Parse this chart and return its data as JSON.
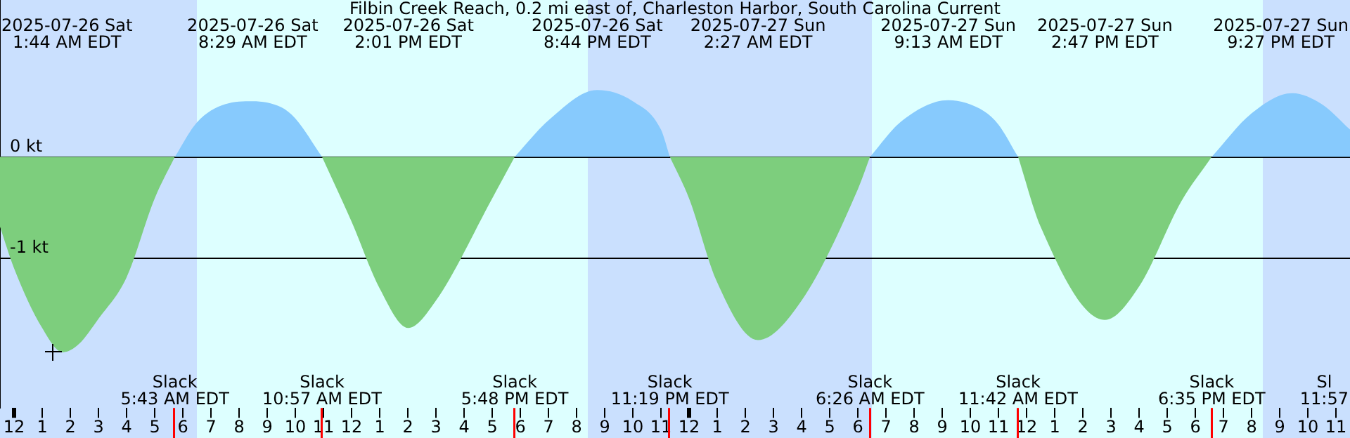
{
  "chart_data": {
    "type": "area",
    "title": "Filbin Creek Reach, 0.2 mi east of, Charleston Harbor, South Carolina Current",
    "x": [
      "2025-07-25T23:30",
      "2025-07-26T00:00",
      "2025-07-26T01:00",
      "2025-07-26T01:44",
      "2025-07-26T02:18",
      "2025-07-26T03:00",
      "2025-07-26T04:00",
      "2025-07-26T05:00",
      "2025-07-26T05:43",
      "2025-07-26T06:30",
      "2025-07-26T07:30",
      "2025-07-26T08:29",
      "2025-07-26T09:30",
      "2025-07-26T10:00",
      "2025-07-26T10:57",
      "2025-07-26T12:00",
      "2025-07-26T13:00",
      "2025-07-26T14:01",
      "2025-07-26T15:00",
      "2025-07-26T17:00",
      "2025-07-26T17:48",
      "2025-07-26T19:00",
      "2025-07-26T20:44",
      "2025-07-26T22:00",
      "2025-07-26T23:00",
      "2025-07-26T23:19",
      "2025-07-27T00:00",
      "2025-07-27T01:00",
      "2025-07-27T02:27",
      "2025-07-27T04:00",
      "2025-07-27T06:00",
      "2025-07-27T06:26",
      "2025-07-27T07:30",
      "2025-07-27T09:13",
      "2025-07-27T10:30",
      "2025-07-27T11:00",
      "2025-07-27T11:42",
      "2025-07-27T12:30",
      "2025-07-27T14:47",
      "2025-07-27T16:00",
      "2025-07-27T17:30",
      "2025-07-27T18:35",
      "2025-07-27T20:00",
      "2025-07-27T21:27",
      "2025-07-27T22:30",
      "2025-07-27T23:30"
    ],
    "series": [
      {
        "color": "#87cafd",
        "values": [
          null,
          null,
          null,
          null,
          null,
          null,
          null,
          null,
          0,
          0.34,
          0.52,
          0.55,
          0.49,
          0.38,
          0,
          null,
          null,
          null,
          null,
          null,
          0,
          0.36,
          0.66,
          0.55,
          0.27,
          0,
          null,
          null,
          null,
          null,
          null,
          0,
          0.34,
          0.56,
          0.45,
          0.32,
          0,
          null,
          null,
          null,
          null,
          0,
          0.43,
          0.63,
          0.52,
          0.27
        ]
      },
      {
        "color": "#7dce7d",
        "values": [
          -0.69,
          -1.1,
          -1.69,
          -1.93,
          -1.85,
          -1.6,
          -1.19,
          -0.41,
          0,
          null,
          null,
          null,
          null,
          null,
          0,
          -0.64,
          -1.3,
          -1.69,
          -1.42,
          -0.41,
          0,
          null,
          null,
          null,
          null,
          0,
          -0.41,
          -1.24,
          -1.81,
          -1.42,
          -0.32,
          0,
          null,
          null,
          null,
          null,
          0,
          -0.69,
          -1.61,
          -1.28,
          -0.44,
          0,
          null,
          null,
          null,
          null
        ]
      }
    ],
    "xlim": [
      "2025-07-25T23:30",
      "2025-07-27T23:30"
    ],
    "xticks": [
      {
        "value": "2025-07-26T00:00",
        "label": "12"
      },
      {
        "value": "2025-07-26T01:00",
        "label": "1"
      },
      {
        "value": "2025-07-26T02:00",
        "label": "2"
      },
      {
        "value": "2025-07-26T03:00",
        "label": "3"
      },
      {
        "value": "2025-07-26T04:00",
        "label": "4"
      },
      {
        "value": "2025-07-26T05:00",
        "label": "5"
      },
      {
        "value": "2025-07-26T06:00",
        "label": "6"
      },
      {
        "value": "2025-07-26T07:00",
        "label": "7"
      },
      {
        "value": "2025-07-26T08:00",
        "label": "8"
      },
      {
        "value": "2025-07-26T09:00",
        "label": "9"
      },
      {
        "value": "2025-07-26T10:00",
        "label": "10"
      },
      {
        "value": "2025-07-26T11:00",
        "label": "11"
      },
      {
        "value": "2025-07-26T12:00",
        "label": "12"
      },
      {
        "value": "2025-07-26T13:00",
        "label": "1"
      },
      {
        "value": "2025-07-26T14:00",
        "label": "2"
      },
      {
        "value": "2025-07-26T15:00",
        "label": "3"
      },
      {
        "value": "2025-07-26T16:00",
        "label": "4"
      },
      {
        "value": "2025-07-26T17:00",
        "label": "5"
      },
      {
        "value": "2025-07-26T18:00",
        "label": "6"
      },
      {
        "value": "2025-07-26T19:00",
        "label": "7"
      },
      {
        "value": "2025-07-26T20:00",
        "label": "8"
      },
      {
        "value": "2025-07-26T21:00",
        "label": "9"
      },
      {
        "value": "2025-07-26T22:00",
        "label": "10"
      },
      {
        "value": "2025-07-26T23:00",
        "label": "11"
      },
      {
        "value": "2025-07-27T00:00",
        "label": "12"
      },
      {
        "value": "2025-07-27T01:00",
        "label": "1"
      },
      {
        "value": "2025-07-27T02:00",
        "label": "2"
      },
      {
        "value": "2025-07-27T03:00",
        "label": "3"
      },
      {
        "value": "2025-07-27T04:00",
        "label": "4"
      },
      {
        "value": "2025-07-27T05:00",
        "label": "5"
      },
      {
        "value": "2025-07-27T06:00",
        "label": "6"
      },
      {
        "value": "2025-07-27T07:00",
        "label": "7"
      },
      {
        "value": "2025-07-27T08:00",
        "label": "8"
      },
      {
        "value": "2025-07-27T09:00",
        "label": "9"
      },
      {
        "value": "2025-07-27T10:00",
        "label": "10"
      },
      {
        "value": "2025-07-27T11:00",
        "label": "11"
      },
      {
        "value": "2025-07-27T12:00",
        "label": "12"
      },
      {
        "value": "2025-07-27T13:00",
        "label": "1"
      },
      {
        "value": "2025-07-27T14:00",
        "label": "2"
      },
      {
        "value": "2025-07-27T15:00",
        "label": "3"
      },
      {
        "value": "2025-07-27T16:00",
        "label": "4"
      },
      {
        "value": "2025-07-27T17:00",
        "label": "5"
      },
      {
        "value": "2025-07-27T18:00",
        "label": "6"
      },
      {
        "value": "2025-07-27T19:00",
        "label": "7"
      },
      {
        "value": "2025-07-27T20:00",
        "label": "8"
      },
      {
        "value": "2025-07-27T21:00",
        "label": "9"
      },
      {
        "value": "2025-07-27T22:00",
        "label": "10"
      },
      {
        "value": "2025-07-27T23:00",
        "label": "11"
      }
    ],
    "ylim": [
      -2.48,
      1.55
    ],
    "yticks": [
      {
        "value": 0,
        "label": "0 kt"
      },
      {
        "value": -1,
        "label": "-1 kt"
      }
    ],
    "grid": "y",
    "legend": false,
    "bands": [
      {
        "axis": "x",
        "from": "2025-07-25T23:30",
        "to": "2025-07-26T06:30",
        "color": "#cae0fe"
      },
      {
        "axis": "x",
        "from": "2025-07-26T20:24",
        "to": "2025-07-27T06:30",
        "color": "#cae0fe"
      },
      {
        "axis": "x",
        "from": "2025-07-27T20:24",
        "to": "2025-07-27T23:30",
        "color": "#cae0fe"
      }
    ],
    "annotations": [
      "2025-07-26 Sat\n1:44 AM EDT",
      "2025-07-26 Sat\n8:29 AM EDT",
      "2025-07-26 Sat\n2:01 PM EDT",
      "2025-07-26 Sat\n8:44 PM EDT",
      "2025-07-27 Sun\n2:27 AM EDT",
      "2025-07-27 Sun\n9:13 AM EDT",
      "2025-07-27 Sun\n2:47 PM EDT",
      "2025-07-27 Sun\n9:27 PM EDT",
      "Sl\n11:57"
    ],
    "ref_lines": [
      {
        "axis": "x",
        "value": "2025-07-26T05:43",
        "label": "Slack\n5:43 AM EDT",
        "color": "#ff0000"
      },
      {
        "axis": "x",
        "value": "2025-07-26T10:57",
        "label": "Slack\n10:57 AM EDT",
        "color": "#ff0000"
      },
      {
        "axis": "x",
        "value": "2025-07-26T17:48",
        "label": "Slack\n5:48 PM EDT",
        "color": "#ff0000"
      },
      {
        "axis": "x",
        "value": "2025-07-26T23:19",
        "label": "Slack\n11:19 PM EDT",
        "color": "#ff0000"
      },
      {
        "axis": "x",
        "value": "2025-07-27T06:26",
        "label": "Slack\n6:26 AM EDT",
        "color": "#ff0000"
      },
      {
        "axis": "x",
        "value": "2025-07-27T11:42",
        "label": "Slack\n11:42 AM EDT",
        "color": "#ff0000"
      },
      {
        "axis": "x",
        "value": "2025-07-27T18:35",
        "label": "Slack\n6:35 PM EDT",
        "color": "#ff0000"
      }
    ]
  }
}
